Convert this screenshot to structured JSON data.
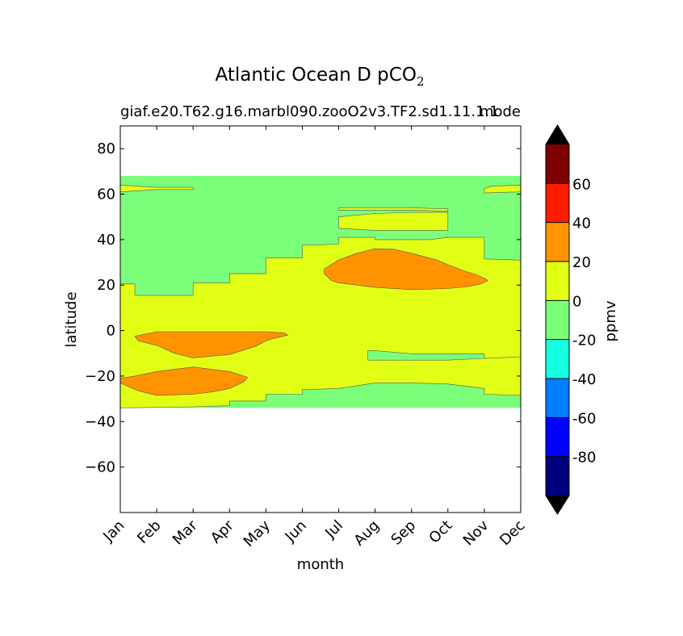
{
  "chart_data": {
    "type": "contourf",
    "title": "Atlantic Ocean D pCO",
    "title_subscript": "2",
    "subtitle_left": "giaf.e20.T62.g16.marbl090.zooO2v3.TF2.sd1.11.1.1",
    "subtitle_right": "mode",
    "xlabel": "month",
    "ylabel": "latitude",
    "ylim": [
      -80,
      90
    ],
    "xlim": [
      0,
      11
    ],
    "x_tick_labels": [
      "Jan",
      "Feb",
      "Mar",
      "Apr",
      "May",
      "Jun",
      "Jul",
      "Aug",
      "Sep",
      "Oct",
      "Nov",
      "Dec"
    ],
    "y_ticks": [
      80,
      60,
      40,
      20,
      0,
      -20,
      -40,
      -60
    ],
    "y_tick_labels": [
      "80",
      "60",
      "40",
      "20",
      "0",
      "−20",
      "−40",
      "−60"
    ],
    "data_lat_range": [
      -34,
      68
    ],
    "colorbar": {
      "label": "ppmv",
      "levels": [
        -100,
        -80,
        -60,
        -40,
        -20,
        0,
        20,
        40,
        60,
        80
      ],
      "tick_labels": [
        "60",
        "40",
        "20",
        "0",
        "-20",
        "-40",
        "-60",
        "-80"
      ],
      "tick_values": [
        60,
        40,
        20,
        0,
        -20,
        -40,
        -60,
        -80
      ],
      "colors": [
        "#00007f",
        "#0000ff",
        "#007fff",
        "#15ffe1",
        "#7bff7b",
        "#e1ff15",
        "#ff9300",
        "#ff1d00",
        "#7f0000"
      ],
      "under_color": "#000000",
      "over_color": "#000000"
    },
    "regions": [
      {
        "band": "-20 to 0",
        "color": "#7bff7b",
        "name": "background",
        "pts": [
          [
            0,
            68
          ],
          [
            11,
            68
          ],
          [
            11,
            -34
          ],
          [
            0,
            -34
          ]
        ]
      },
      {
        "band": "0 to 20",
        "color": "#e1ff15",
        "name": "main-band",
        "pts": [
          [
            0,
            20.5
          ],
          [
            0.4,
            20.5
          ],
          [
            0.4,
            15.5
          ],
          [
            2,
            15.5
          ],
          [
            2,
            21
          ],
          [
            3,
            21
          ],
          [
            3,
            25
          ],
          [
            4,
            25
          ],
          [
            4,
            32
          ],
          [
            5,
            32
          ],
          [
            5,
            37.5
          ],
          [
            6,
            38
          ],
          [
            6,
            41
          ],
          [
            7,
            41
          ],
          [
            7,
            40
          ],
          [
            8.5,
            40
          ],
          [
            9,
            41
          ],
          [
            10,
            41
          ],
          [
            10,
            31.5
          ],
          [
            11,
            31
          ],
          [
            11,
            -11.5
          ],
          [
            10,
            -12.2
          ],
          [
            10,
            -10.2
          ],
          [
            9,
            -10.2
          ],
          [
            8,
            -10.2
          ],
          [
            7,
            -8.8
          ],
          [
            6.8,
            -8.8
          ],
          [
            6.8,
            -13
          ],
          [
            8,
            -13
          ],
          [
            9,
            -13
          ],
          [
            10,
            -12.2
          ],
          [
            11,
            -11.5
          ],
          [
            11,
            -28.5
          ],
          [
            10,
            -28
          ],
          [
            10,
            -25.5
          ],
          [
            9,
            -23.5
          ],
          [
            8,
            -23
          ],
          [
            7,
            -23
          ],
          [
            6,
            -25.5
          ],
          [
            5,
            -26
          ],
          [
            5,
            -28
          ],
          [
            4,
            -28
          ],
          [
            4,
            -31
          ],
          [
            3,
            -31
          ],
          [
            3,
            -33
          ],
          [
            2,
            -33.5
          ],
          [
            0,
            -34
          ]
        ]
      },
      {
        "band": "0 to 20",
        "color": "#e1ff15",
        "name": "north-jan-strip",
        "pts": [
          [
            0,
            64
          ],
          [
            1,
            63
          ],
          [
            2,
            63
          ],
          [
            2,
            62
          ],
          [
            1,
            62
          ],
          [
            0,
            61
          ]
        ]
      },
      {
        "band": "0 to 20",
        "color": "#e1ff15",
        "name": "north-dec-strip",
        "pts": [
          [
            10,
            60.5
          ],
          [
            10,
            62.5
          ],
          [
            10.2,
            63.5
          ],
          [
            11,
            64
          ],
          [
            11,
            61
          ]
        ]
      },
      {
        "band": "0 to 20",
        "color": "#e1ff15",
        "name": "north-summer-strip-1",
        "pts": [
          [
            6,
            54
          ],
          [
            7,
            54
          ],
          [
            8,
            54
          ],
          [
            9,
            53.5
          ],
          [
            9,
            52.5
          ],
          [
            8,
            53
          ],
          [
            7,
            53
          ],
          [
            6,
            53
          ]
        ]
      },
      {
        "band": "0 to 20",
        "color": "#e1ff15",
        "name": "north-summer-strip-2",
        "pts": [
          [
            6,
            50
          ],
          [
            7,
            51.5
          ],
          [
            8,
            52
          ],
          [
            9,
            52
          ],
          [
            9,
            44
          ],
          [
            8,
            44
          ],
          [
            7,
            44
          ],
          [
            6,
            45
          ]
        ]
      },
      {
        "band": "20 to 40",
        "color": "#ff9300",
        "name": "summer-high",
        "pts": [
          [
            5.6,
            27
          ],
          [
            6,
            31
          ],
          [
            6.5,
            34
          ],
          [
            7,
            36
          ],
          [
            7.5,
            35.8
          ],
          [
            8,
            34
          ],
          [
            8.7,
            31
          ],
          [
            9,
            29
          ],
          [
            9.4,
            26.5
          ],
          [
            9.8,
            24.5
          ],
          [
            10,
            23
          ],
          [
            10.1,
            22
          ],
          [
            9.9,
            20.5
          ],
          [
            9.5,
            19.2
          ],
          [
            9,
            18.5
          ],
          [
            8,
            18
          ],
          [
            7,
            19
          ],
          [
            6,
            21
          ],
          [
            5.8,
            22
          ],
          [
            5.6,
            25
          ]
        ]
      },
      {
        "band": "20 to 40",
        "color": "#ff9300",
        "name": "equatorial-high",
        "pts": [
          [
            0.4,
            -2.5
          ],
          [
            1,
            -0.5
          ],
          [
            2,
            -0.5
          ],
          [
            3,
            -0.5
          ],
          [
            4,
            -0.5
          ],
          [
            4.5,
            -1
          ],
          [
            4.6,
            -2
          ],
          [
            4.2,
            -3.5
          ],
          [
            4,
            -4.5
          ],
          [
            3.7,
            -7
          ],
          [
            3,
            -10.5
          ],
          [
            2,
            -12
          ],
          [
            1.5,
            -10
          ],
          [
            1,
            -6.5
          ],
          [
            0.5,
            -4.5
          ]
        ]
      },
      {
        "band": "20 to 40",
        "color": "#ff9300",
        "name": "southern-high",
        "pts": [
          [
            0,
            -23
          ],
          [
            0.2,
            -24.5
          ],
          [
            0.5,
            -26.5
          ],
          [
            1,
            -28.5
          ],
          [
            2,
            -28
          ],
          [
            2.5,
            -27
          ],
          [
            3,
            -25.5
          ],
          [
            3.4,
            -22.5
          ],
          [
            3.5,
            -20.5
          ],
          [
            3,
            -18
          ],
          [
            2,
            -16
          ],
          [
            1,
            -18
          ],
          [
            0.4,
            -20
          ],
          [
            0,
            -21
          ]
        ]
      }
    ]
  }
}
